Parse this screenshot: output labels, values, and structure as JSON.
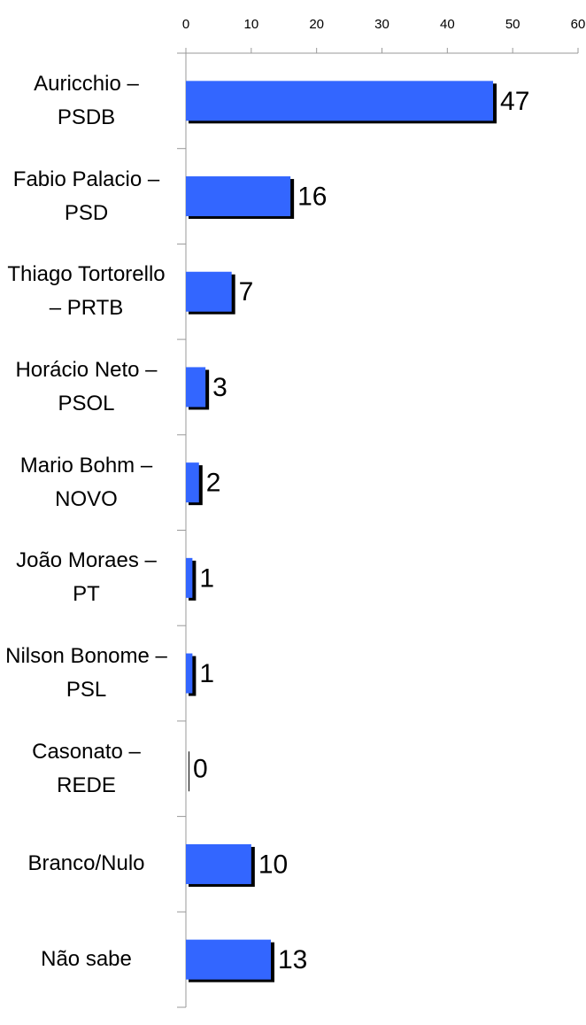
{
  "chart_data": {
    "type": "barh",
    "categories": [
      "Auricchio – PSDB",
      "Fabio Palacio – PSD",
      "Thiago Tortorello – PRTB",
      "Horácio Neto – PSOL",
      "Mario Bohm – NOVO",
      "João Moraes – PT",
      "Nilson Bonome – PSL",
      "Casonato – REDE",
      "Branco/Nulo",
      "Não sabe"
    ],
    "values": [
      47,
      16,
      7,
      3,
      2,
      1,
      1,
      0,
      10,
      13
    ],
    "color": "#3366ff",
    "xlim": [
      0,
      60
    ],
    "xticks": [
      0,
      10,
      20,
      30,
      40,
      50,
      60
    ]
  }
}
